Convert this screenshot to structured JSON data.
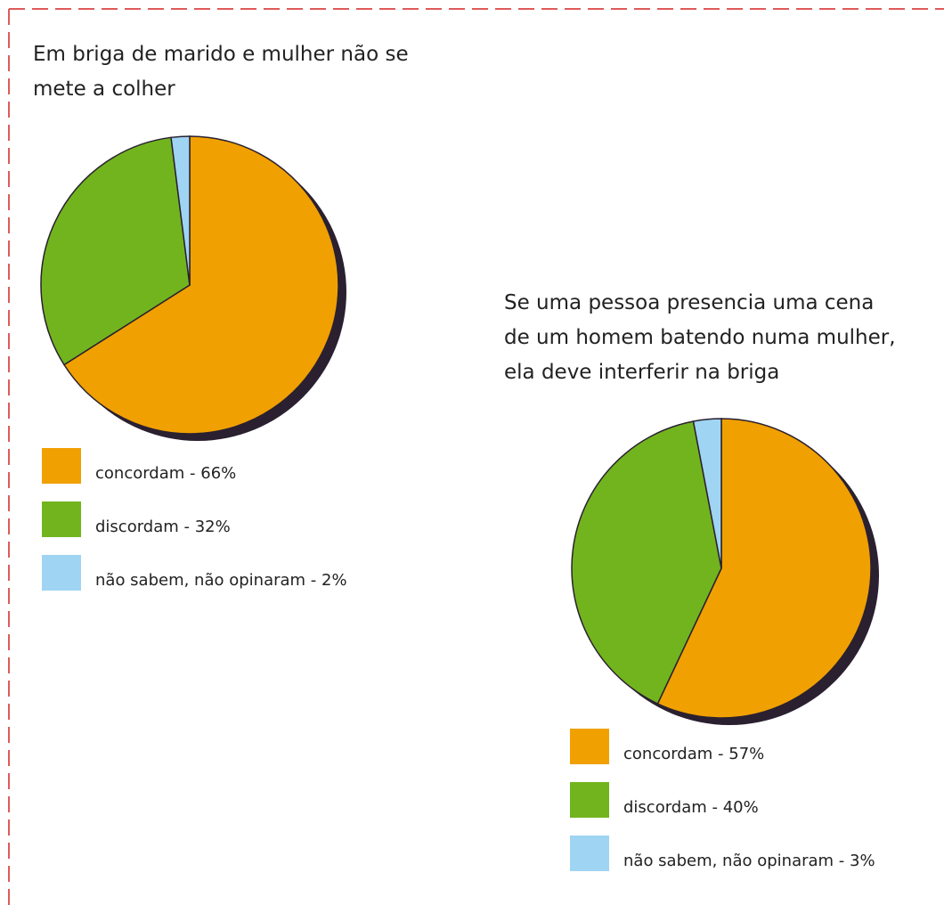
{
  "chart_data": [
    {
      "type": "pie",
      "title": [
        "Em briga de marido e mulher não se",
        "mete a colher"
      ],
      "categories": [
        "concordam - 66%",
        "discordam - 32%",
        "não sabem, não opinaram - 2%"
      ],
      "values": [
        66,
        32,
        2
      ],
      "colors": [
        "#f0a000",
        "#72b41e",
        "#9fd4f2"
      ]
    },
    {
      "type": "pie",
      "title": [
        "Se uma pessoa presencia uma cena",
        "de um homem batendo numa mulher,",
        "ela deve interferir na briga"
      ],
      "categories": [
        "concordam - 57%",
        "discordam - 40%",
        "não sabem, não opinaram - 3%"
      ],
      "values": [
        57,
        40,
        3
      ],
      "colors": [
        "#f0a000",
        "#72b41e",
        "#9fd4f2"
      ]
    }
  ]
}
